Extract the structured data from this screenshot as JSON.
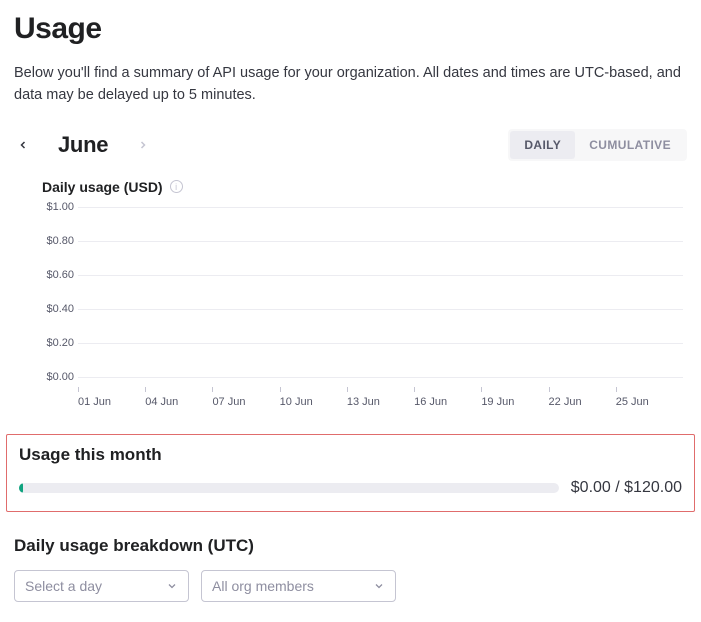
{
  "header": {
    "title": "Usage",
    "description": "Below you'll find a summary of API usage for your organization. All dates and times are UTC-based, and data may be delayed up to 5 minutes."
  },
  "monthNav": {
    "month_label": "June",
    "prev_enabled": true,
    "next_enabled": false
  },
  "toggle": {
    "options": [
      "DAILY",
      "CUMULATIVE"
    ],
    "active_index": 0
  },
  "daily_chart": {
    "type": "bar",
    "title": "Daily usage (USD)",
    "title_fontsize": 14,
    "label_fontsize": 11,
    "background_color": "#ffffff",
    "grid_color": "#ececf1",
    "tick_color": "#565869",
    "ylim": [
      0.0,
      1.0
    ],
    "ytick_step": 0.2,
    "yticks": [
      "$1.00",
      "$0.80",
      "$0.60",
      "$0.40",
      "$0.20",
      "$0.00"
    ],
    "xticks": [
      "01 Jun",
      "04 Jun",
      "07 Jun",
      "10 Jun",
      "13 Jun",
      "16 Jun",
      "19 Jun",
      "22 Jun",
      "25 Jun"
    ],
    "values": [],
    "bar_color": "#10a37f"
  },
  "usage_month": {
    "title": "Usage this month",
    "current": "$0.00",
    "limit": "$120.00",
    "separator": " / ",
    "fill_percent": 0.8,
    "fill_color": "#10a37f",
    "track_color": "#ececf1",
    "border_color": "#e06c6c"
  },
  "breakdown": {
    "title": "Daily usage breakdown (UTC)",
    "selects": {
      "day": {
        "placeholder": "Select a day"
      },
      "members": {
        "placeholder": "All org members"
      }
    }
  },
  "colors": {
    "text_primary": "#202123",
    "text_secondary": "#565869",
    "text_muted": "#8e8ea0",
    "border": "#c5c5d2",
    "accent": "#10a37f"
  }
}
